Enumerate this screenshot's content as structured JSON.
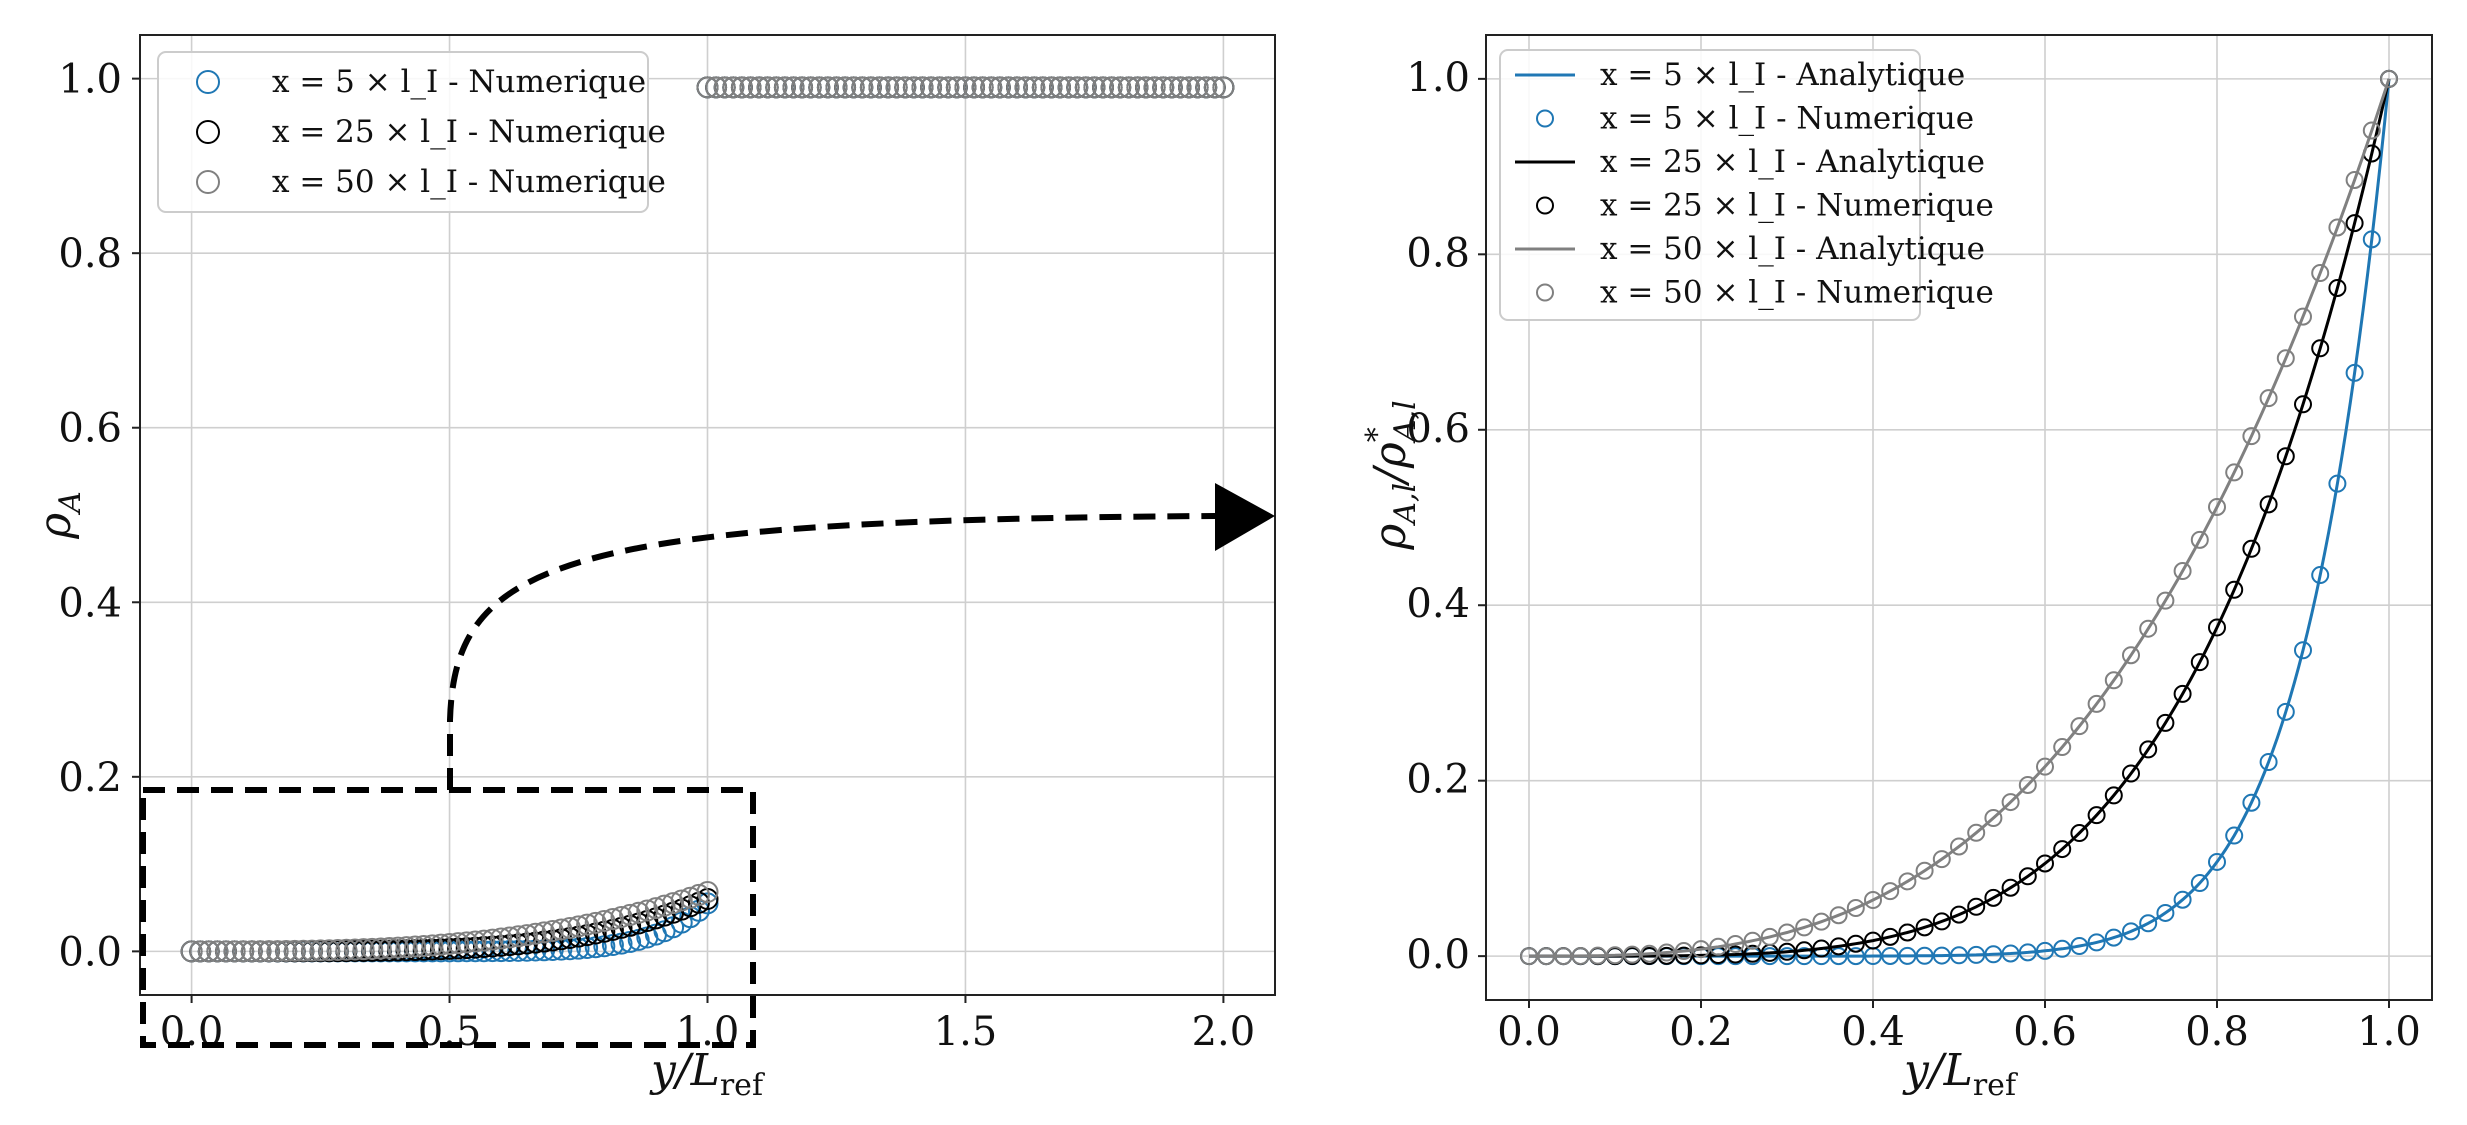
{
  "chart_data": [
    {
      "type": "scatter",
      "xlabel": "y/L_ref",
      "ylabel": "ρ_A",
      "xlim": [
        -0.1,
        2.1
      ],
      "ylim": [
        -0.05,
        1.05
      ],
      "x_ticks": [
        "0.0",
        "0.5",
        "1.0",
        "1.5",
        "2.0"
      ],
      "y_ticks": [
        "0.0",
        "0.2",
        "0.4",
        "0.6",
        "0.8",
        "1.0"
      ],
      "grid": true,
      "legend_position": "upper-left",
      "legend": [
        "x = 5 × l_I - Numerique",
        "x = 25 × l_I - Numerique",
        "x = 50 × l_I - Numerique"
      ],
      "series": [
        {
          "name": "x = 5 × l_I - Numerique",
          "color": "#1f77b4",
          "marker": "open-circle",
          "exponent": 10.0,
          "max": 0.055
        },
        {
          "name": "x = 25 × l_I - Numerique",
          "color": "#000000",
          "marker": "open-circle",
          "exponent": 4.4,
          "max": 0.06
        },
        {
          "name": "x = 50 × l_I - Numerique",
          "color": "#808080",
          "marker": "open-circle",
          "exponent": 3.0,
          "max": 0.068
        }
      ],
      "upper_plateau": {
        "x": [
          1.0,
          2.0
        ],
        "y": 0.99
      },
      "annotation": "zoom box on region y/L_ref ∈ [0, 1] with dashed arrow pointing to right panel"
    },
    {
      "type": "line+scatter",
      "xlabel": "y/L_ref",
      "ylabel": "ρ_A,l / ρ*_A,l",
      "xlim": [
        -0.05,
        1.05
      ],
      "ylim": [
        -0.05,
        1.05
      ],
      "x_ticks": [
        "0.0",
        "0.2",
        "0.4",
        "0.6",
        "0.8",
        "1.0"
      ],
      "y_ticks": [
        "0.0",
        "0.2",
        "0.4",
        "0.6",
        "0.8",
        "1.0"
      ],
      "grid": true,
      "legend_position": "upper-left",
      "legend": [
        "x = 5 × l_I - Analytique",
        "x = 5 × l_I - Numerique",
        "x = 25 × l_I - Analytique",
        "x = 25 × l_I - Numerique",
        "x = 50 × l_I - Analytique",
        "x = 50 × l_I - Numerique"
      ],
      "series": [
        {
          "name": "x = 5 × l_I",
          "color": "#1f77b4",
          "exponent": 10.0
        },
        {
          "name": "x = 25 × l_I",
          "color": "#000000",
          "exponent": 4.4
        },
        {
          "name": "x = 50 × l_I",
          "color": "#808080",
          "exponent": 3.0
        }
      ],
      "x_points": 51
    }
  ]
}
